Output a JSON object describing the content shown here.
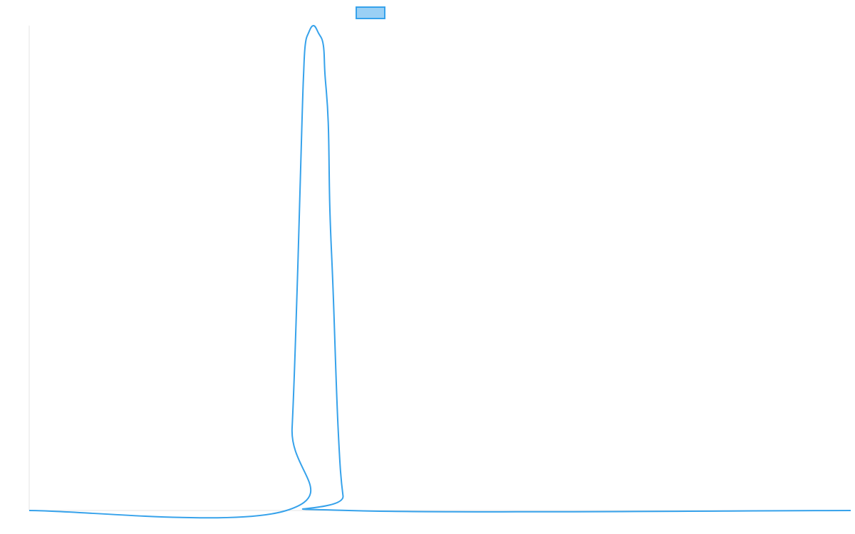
{
  "chart_data": {
    "type": "line",
    "title": "",
    "xlabel": "",
    "ylabel": "",
    "xlim": [
      0,
      100
    ],
    "ylim": [
      0,
      1
    ],
    "grid": false,
    "legend": {
      "position": "top-center",
      "entries": [
        {
          "label": "",
          "color": "#36a2eb",
          "fill": "#9ad0f5"
        }
      ]
    },
    "series": [
      {
        "color": "#36a2eb",
        "x": [
          0,
          31.3,
          32.0,
          32.6,
          33.2,
          33.4,
          33.6,
          34.0,
          34.6,
          35.2,
          35.8,
          36.0,
          36.4,
          36.6,
          37.0,
          37.6,
          38.2,
          38.9,
          100
        ],
        "y": [
          0,
          0,
          0.17,
          0.45,
          0.8,
          0.9,
          0.96,
          0.985,
          1.0,
          0.985,
          0.96,
          0.9,
          0.8,
          0.62,
          0.45,
          0.17,
          0.03,
          0,
          0
        ]
      }
    ]
  }
}
